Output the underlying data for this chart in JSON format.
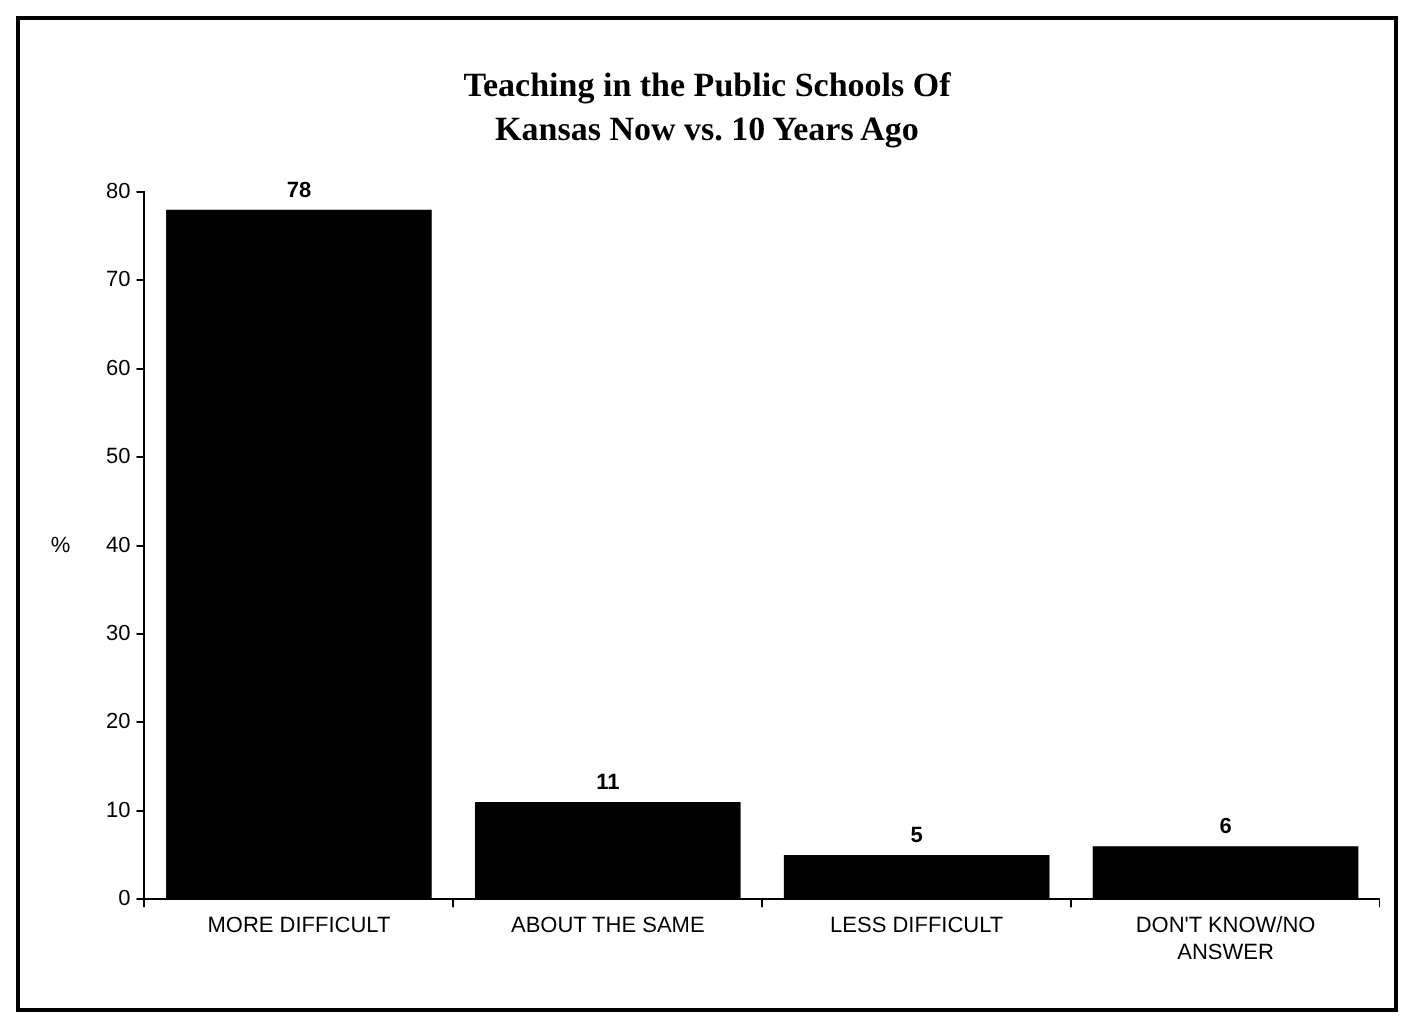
{
  "chart_data": {
    "type": "bar",
    "title": "Teaching in the Public Schools Of Kansas Now vs. 10 Years Ago",
    "ylabel": "%",
    "categories": [
      "MORE DIFFICULT",
      "ABOUT THE SAME",
      "LESS DIFFICULT",
      "DON'T KNOW/NO ANSWER"
    ],
    "values": [
      78,
      11,
      5,
      6
    ],
    "color": "#000000",
    "ylim": [
      0,
      80
    ],
    "yticks": [
      0,
      10,
      20,
      30,
      40,
      50,
      60,
      70,
      80
    ],
    "grid": false,
    "legend": false,
    "data_labels": true
  }
}
